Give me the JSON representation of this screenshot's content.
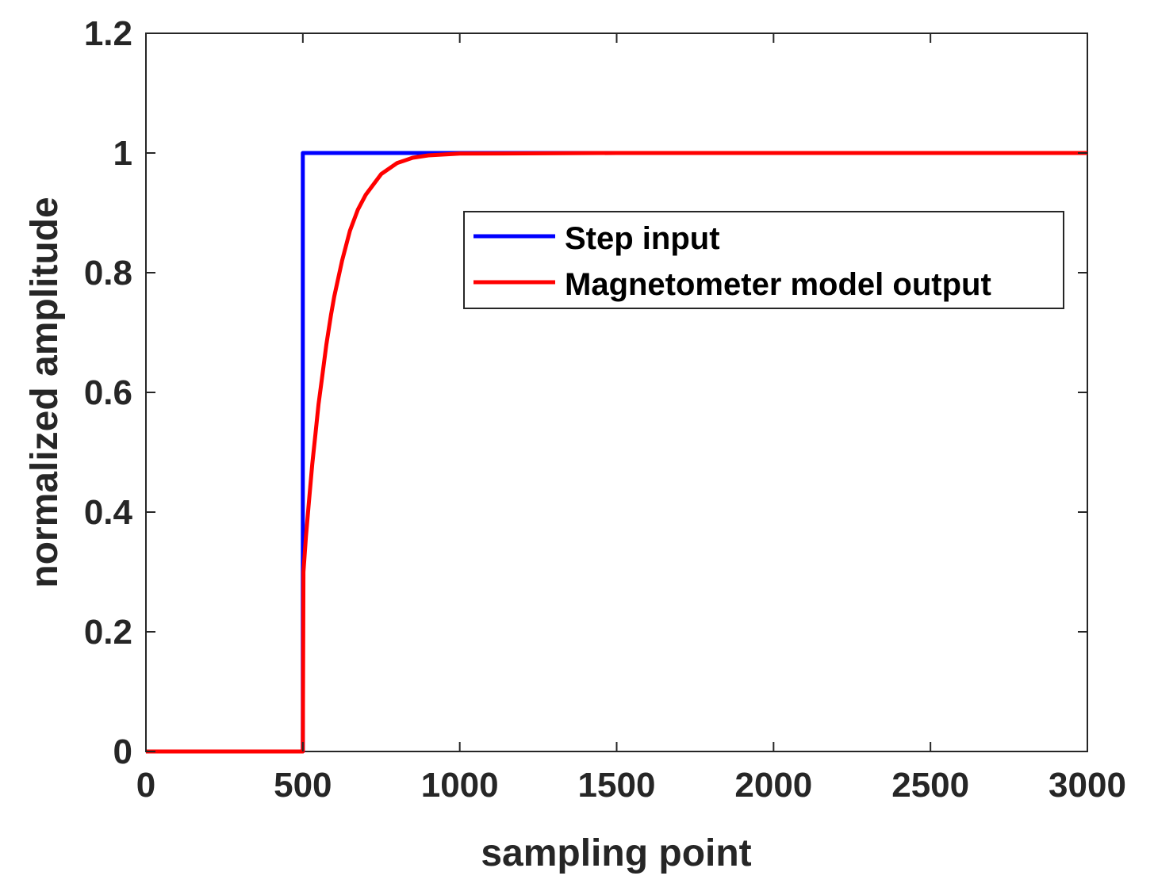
{
  "chart_data": {
    "type": "line",
    "title": "",
    "xlabel": "sampling point",
    "ylabel": "normalized amplitude",
    "xlim": [
      0,
      3000
    ],
    "ylim": [
      0,
      1.2
    ],
    "xticks": [
      0,
      500,
      1000,
      1500,
      2000,
      2500,
      3000
    ],
    "xtick_labels": [
      "0",
      "500",
      "1000",
      "1500",
      "2000",
      "2500",
      "3000"
    ],
    "yticks": [
      0,
      0.2,
      0.4,
      0.6,
      0.8,
      1.0,
      1.2
    ],
    "ytick_labels": [
      "0",
      "0.2",
      "0.4",
      "0.6",
      "0.8",
      "1",
      "1.2"
    ],
    "grid": false,
    "legend_position": "upper-right",
    "series": [
      {
        "name": "Step input",
        "color": "#0000ff",
        "x": [
          0,
          500,
          500,
          3000
        ],
        "y": [
          0,
          0,
          1,
          1
        ]
      },
      {
        "name": "Magnetometer model output",
        "color": "#ff0000",
        "x": [
          0,
          500,
          502,
          510,
          520,
          530,
          540,
          550,
          560,
          575,
          590,
          600,
          625,
          650,
          675,
          700,
          750,
          800,
          850,
          900,
          1000,
          1500,
          2000,
          2500,
          3000
        ],
        "y": [
          0,
          0,
          0.3,
          0.36,
          0.42,
          0.48,
          0.53,
          0.58,
          0.62,
          0.68,
          0.73,
          0.76,
          0.82,
          0.87,
          0.905,
          0.93,
          0.965,
          0.983,
          0.992,
          0.996,
          0.999,
          1,
          1,
          1,
          1
        ]
      }
    ]
  }
}
